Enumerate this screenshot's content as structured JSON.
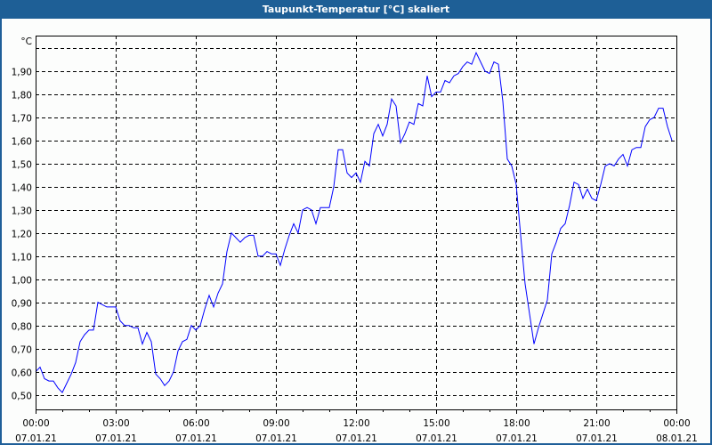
{
  "window": {
    "title": "Taupunkt-Temperatur [°C] skaliert"
  },
  "chart_data": {
    "type": "line",
    "title": "Taupunkt-Temperatur [°C] skaliert",
    "ylabel": "°C",
    "xlabel": "",
    "ylim": [
      0.437,
      2.054
    ],
    "xlim_hours": [
      0,
      24
    ],
    "grid": true,
    "y_ticks": [
      "0,50",
      "0,60",
      "0,70",
      "0,80",
      "0,90",
      "1,00",
      "1,10",
      "1,20",
      "1,30",
      "1,40",
      "1,50",
      "1,60",
      "1,70",
      "1,80",
      "1,90",
      ""
    ],
    "y_tick_values": [
      0.5,
      0.6,
      0.7,
      0.8,
      0.9,
      1.0,
      1.1,
      1.2,
      1.3,
      1.4,
      1.5,
      1.6,
      1.7,
      1.8,
      1.9,
      2.0
    ],
    "x_ticks": [
      {
        "hour": 0,
        "time": "00:00",
        "date": "07.01.21"
      },
      {
        "hour": 3,
        "time": "03:00",
        "date": "07.01.21"
      },
      {
        "hour": 6,
        "time": "06:00",
        "date": "07.01.21"
      },
      {
        "hour": 9,
        "time": "09:00",
        "date": "07.01.21"
      },
      {
        "hour": 12,
        "time": "12:00",
        "date": "07.01.21"
      },
      {
        "hour": 15,
        "time": "15:00",
        "date": "07.01.21"
      },
      {
        "hour": 18,
        "time": "18:00",
        "date": "07.01.21"
      },
      {
        "hour": 21,
        "time": "21:00",
        "date": "07.01.21"
      },
      {
        "hour": 24,
        "time": "00:00",
        "date": "08.01.21"
      }
    ],
    "series": [
      {
        "name": "Taupunkt-Temperatur",
        "color": "#0000ff",
        "start_hour": 0,
        "interval_minutes": 10,
        "values": [
          0.6,
          0.62,
          0.57,
          0.56,
          0.56,
          0.53,
          0.51,
          0.55,
          0.59,
          0.64,
          0.73,
          0.76,
          0.78,
          0.78,
          0.9,
          0.89,
          0.88,
          0.88,
          0.88,
          0.82,
          0.8,
          0.8,
          0.79,
          0.79,
          0.72,
          0.77,
          0.73,
          0.59,
          0.57,
          0.54,
          0.56,
          0.6,
          0.69,
          0.73,
          0.74,
          0.8,
          0.78,
          0.8,
          0.87,
          0.93,
          0.88,
          0.94,
          0.98,
          1.12,
          1.2,
          1.18,
          1.16,
          1.18,
          1.19,
          1.19,
          1.1,
          1.1,
          1.12,
          1.11,
          1.11,
          1.06,
          1.13,
          1.19,
          1.24,
          1.2,
          1.3,
          1.31,
          1.3,
          1.24,
          1.31,
          1.31,
          1.31,
          1.4,
          1.56,
          1.56,
          1.46,
          1.44,
          1.46,
          1.42,
          1.51,
          1.49,
          1.63,
          1.67,
          1.62,
          1.67,
          1.78,
          1.75,
          1.59,
          1.63,
          1.68,
          1.67,
          1.76,
          1.75,
          1.88,
          1.79,
          1.81,
          1.81,
          1.86,
          1.85,
          1.88,
          1.89,
          1.92,
          1.94,
          1.93,
          1.98,
          1.94,
          1.9,
          1.89,
          1.94,
          1.93,
          1.77,
          1.52,
          1.49,
          1.41,
          1.19,
          0.98,
          0.85,
          0.72,
          0.79,
          0.85,
          0.91,
          1.11,
          1.16,
          1.22,
          1.24,
          1.32,
          1.42,
          1.41,
          1.35,
          1.39,
          1.35,
          1.34,
          1.41,
          1.49,
          1.5,
          1.49,
          1.52,
          1.54,
          1.49,
          1.56,
          1.57,
          1.57,
          1.66,
          1.69,
          1.7,
          1.74,
          1.74,
          1.66,
          1.6
        ]
      }
    ]
  }
}
